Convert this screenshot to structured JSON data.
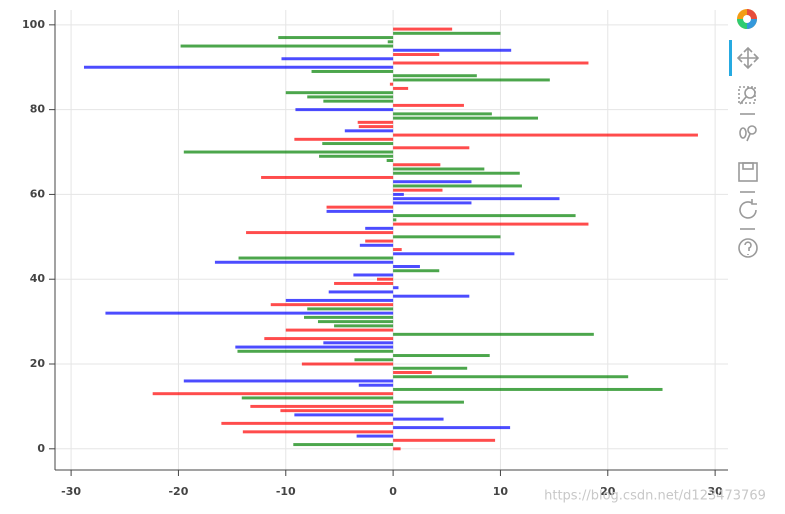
{
  "chart_data": {
    "type": "hbar",
    "y": [
      0,
      1,
      2,
      3,
      4,
      5,
      6,
      7,
      8,
      9,
      10,
      11,
      12,
      13,
      14,
      15,
      16,
      17,
      18,
      19,
      20,
      21,
      22,
      23,
      24,
      25,
      26,
      27,
      28,
      29,
      30,
      31,
      32,
      33,
      34,
      35,
      36,
      37,
      38,
      39,
      40,
      41,
      42,
      43,
      44,
      45,
      46,
      47,
      48,
      49,
      50,
      51,
      52,
      53,
      54,
      55,
      56,
      57,
      58,
      59,
      60,
      61,
      62,
      63,
      64,
      65,
      66,
      67,
      68,
      69,
      70,
      71,
      72,
      73,
      74,
      75,
      76,
      77,
      78,
      79,
      80,
      81,
      82,
      83,
      84,
      85,
      86,
      87,
      88,
      89,
      90,
      91,
      92,
      93,
      94,
      95,
      96,
      97,
      98,
      99
    ],
    "values": [
      0.7,
      -9.3,
      9.5,
      -3.4,
      -14,
      10.9,
      -16,
      4.7,
      -9.2,
      -10.5,
      -13.3,
      6.6,
      -14.1,
      -22.4,
      25.1,
      -3.2,
      -19.5,
      21.9,
      3.6,
      6.9,
      -8.5,
      -3.6,
      9,
      -14.5,
      -14.7,
      -6.5,
      -12,
      18.7,
      -10,
      -5.5,
      -7,
      -8.3,
      -26.8,
      -8,
      -11.4,
      -10,
      7.1,
      -6,
      0.5,
      -5.5,
      -1.5,
      -3.7,
      4.3,
      2.5,
      -16.6,
      -14.4,
      11.3,
      0.8,
      -3.1,
      -2.6,
      10,
      -13.7,
      -2.6,
      18.2,
      0.3,
      17,
      -6.2,
      -6.2,
      7.3,
      15.5,
      1,
      4.6,
      12,
      7.3,
      -12.3,
      11.8,
      8.5,
      4.4,
      -0.6,
      -6.9,
      -19.5,
      7.1,
      -6.6,
      -9.2,
      28.4,
      -4.5,
      -3.2,
      -3.3,
      13.5,
      9.2,
      -9.1,
      6.6,
      -6.5,
      -8,
      -10,
      1.4,
      -0.3,
      14.6,
      7.8,
      -7.6,
      -28.8,
      18.2,
      -10.4,
      4.3,
      11,
      -19.8,
      -0.5,
      -10.7,
      10,
      5.5
    ],
    "colors": [
      "red",
      "green",
      "red",
      "blue",
      "red",
      "blue",
      "red",
      "blue",
      "blue",
      "red",
      "red",
      "green",
      "green",
      "red",
      "green",
      "blue",
      "blue",
      "green",
      "red",
      "green",
      "red",
      "green",
      "green",
      "green",
      "blue",
      "blue",
      "red",
      "green",
      "red",
      "green",
      "green",
      "green",
      "blue",
      "green",
      "red",
      "blue",
      "blue",
      "blue",
      "blue",
      "red",
      "red",
      "blue",
      "green",
      "blue",
      "blue",
      "green",
      "blue",
      "red",
      "blue",
      "red",
      "green",
      "red",
      "blue",
      "red",
      "green",
      "green",
      "blue",
      "red",
      "blue",
      "blue",
      "blue",
      "red",
      "green",
      "blue",
      "red",
      "green",
      "green",
      "red",
      "green",
      "green",
      "green",
      "red",
      "green",
      "red",
      "red",
      "blue",
      "red",
      "red",
      "green",
      "green",
      "blue",
      "red",
      "green",
      "green",
      "green",
      "red",
      "red",
      "green",
      "green",
      "green",
      "blue",
      "red",
      "blue",
      "red",
      "blue",
      "green",
      "green",
      "green",
      "green",
      "red"
    ],
    "opacity": 0.7,
    "xlim": [
      -31.5,
      31.2
    ],
    "ylim": [
      -5,
      103.5
    ],
    "xticks": [
      -30,
      -20,
      -10,
      0,
      10,
      20,
      30
    ],
    "yticks": [
      0,
      20,
      40,
      60,
      80,
      100
    ],
    "grid": true,
    "watermark": "https://blog.csdn.net/d123473769"
  }
}
